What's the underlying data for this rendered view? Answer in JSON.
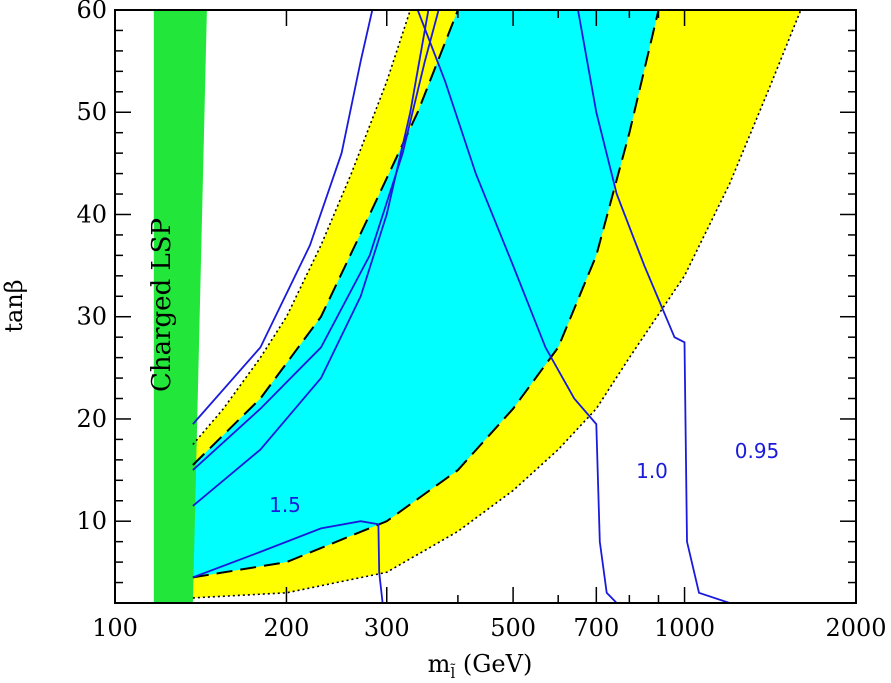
{
  "chart_data": {
    "type": "area",
    "xlabel": "m",
    "xlabel_sub": "l̃",
    "xlabel_unit": "(GeV)",
    "ylabel": "tanβ",
    "xscale": "log",
    "xlim": [
      100,
      2000
    ],
    "ylim": [
      2,
      60
    ],
    "x_ticks": [
      100,
      200,
      300,
      500,
      700,
      1000,
      2000
    ],
    "x_tick_labels": [
      "100",
      "200",
      "300",
      "500",
      "700",
      "1000",
      "2000"
    ],
    "y_ticks": [
      10,
      20,
      30,
      40,
      50,
      60
    ],
    "y_tick_labels": [
      "10",
      "20",
      "30",
      "40",
      "50",
      "60"
    ],
    "colors": {
      "charged_lsp": "#22e63a",
      "outer_band": "#ffff00",
      "inner_band": "#00ffff",
      "contours": "#1a1adc"
    },
    "regions": {
      "charged_lsp": {
        "label": "Charged LSP",
        "boundary": [
          [
            117,
            2
          ],
          [
            117,
            60
          ],
          [
            145,
            60
          ],
          [
            137,
            2
          ]
        ]
      },
      "outer_band": {
        "upper": [
          [
            137,
            17.5
          ],
          [
            155,
            21
          ],
          [
            180,
            26
          ],
          [
            200,
            30
          ],
          [
            230,
            37
          ],
          [
            260,
            44
          ],
          [
            300,
            53
          ],
          [
            330,
            60
          ]
        ],
        "lower": [
          [
            137,
            2.5
          ],
          [
            200,
            3
          ],
          [
            300,
            5
          ],
          [
            400,
            9
          ],
          [
            500,
            13
          ],
          [
            600,
            17
          ],
          [
            700,
            21
          ],
          [
            800,
            26
          ],
          [
            1000,
            34
          ],
          [
            1200,
            43
          ],
          [
            1400,
            52
          ],
          [
            1600,
            60
          ]
        ]
      },
      "inner_band": {
        "upper": [
          [
            137,
            15.5
          ],
          [
            180,
            22
          ],
          [
            230,
            30
          ],
          [
            280,
            40
          ],
          [
            340,
            50
          ],
          [
            400,
            60
          ]
        ],
        "lower": [
          [
            137,
            4.5
          ],
          [
            200,
            6
          ],
          [
            300,
            10
          ],
          [
            400,
            15
          ],
          [
            500,
            21
          ],
          [
            600,
            27
          ],
          [
            700,
            36
          ],
          [
            800,
            48
          ],
          [
            900,
            60
          ]
        ]
      }
    },
    "series": [
      {
        "name": "1.5",
        "points": [
          [
            137,
            4.5
          ],
          [
            180,
            7
          ],
          [
            230,
            9.3
          ],
          [
            270,
            10
          ],
          [
            290,
            9.7
          ],
          [
            291,
            5
          ],
          [
            295,
            2
          ]
        ]
      },
      {
        "name": "1.0",
        "points": [
          [
            340,
            60
          ],
          [
            380,
            53
          ],
          [
            430,
            44
          ],
          [
            500,
            35
          ],
          [
            570,
            27
          ],
          [
            640,
            22
          ],
          [
            700,
            19.5
          ],
          [
            710,
            8
          ],
          [
            730,
            3
          ],
          [
            760,
            2
          ]
        ]
      },
      {
        "name": "0.95",
        "points": [
          [
            650,
            60
          ],
          [
            700,
            50
          ],
          [
            760,
            42
          ],
          [
            850,
            35
          ],
          [
            960,
            28
          ],
          [
            1000,
            27.5
          ],
          [
            1010,
            8
          ],
          [
            1060,
            3
          ],
          [
            1200,
            2
          ]
        ]
      }
    ],
    "upper_contours": [
      [
        [
          137,
          11.5
        ],
        [
          180,
          17
        ],
        [
          230,
          24
        ],
        [
          270,
          32
        ],
        [
          300,
          40
        ],
        [
          330,
          50
        ],
        [
          355,
          60
        ]
      ],
      [
        [
          137,
          15
        ],
        [
          180,
          21
        ],
        [
          230,
          27
        ],
        [
          280,
          36
        ],
        [
          320,
          46
        ],
        [
          350,
          55
        ],
        [
          370,
          60
        ]
      ],
      [
        [
          137,
          19.5
        ],
        [
          180,
          27
        ],
        [
          220,
          37
        ],
        [
          250,
          46
        ],
        [
          270,
          55
        ],
        [
          283,
          60
        ]
      ]
    ]
  }
}
